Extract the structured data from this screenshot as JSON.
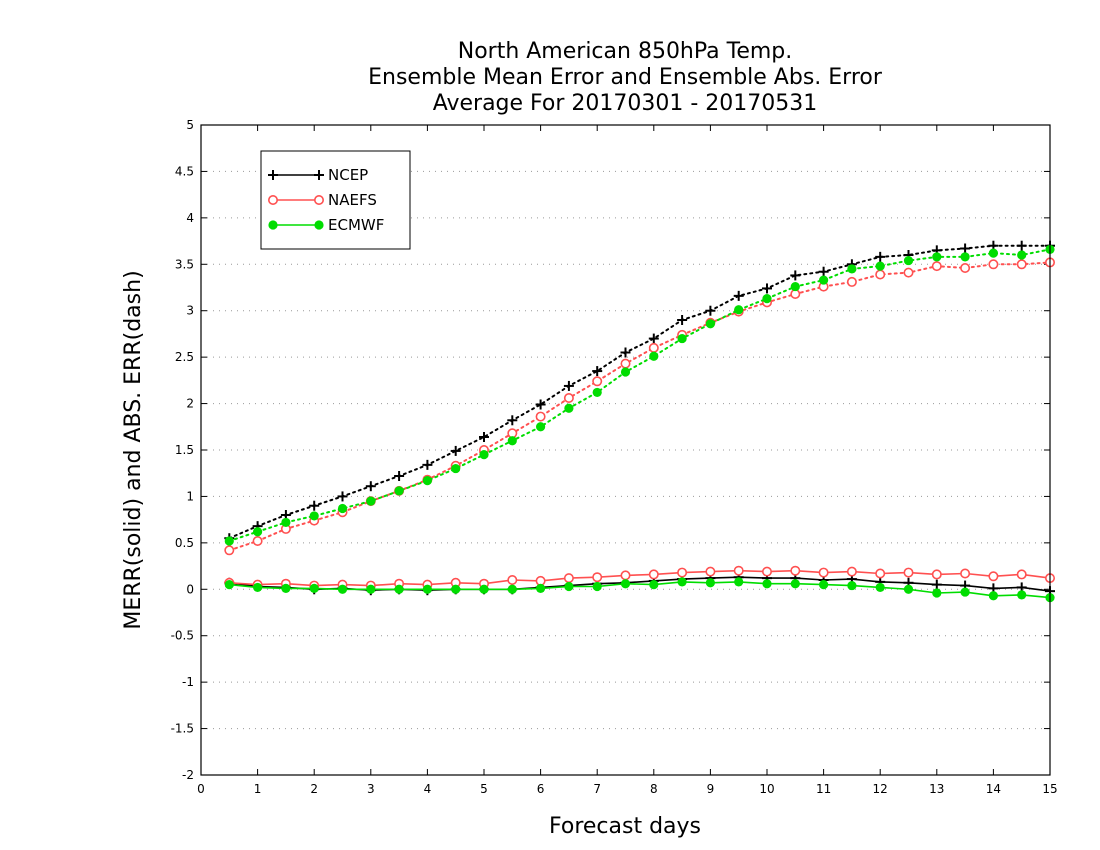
{
  "chart_data": {
    "type": "line",
    "title": [
      "North American 850hPa Temp.",
      "Ensemble Mean Error and Ensemble Abs. Error",
      "Average For 20170301 - 20170531"
    ],
    "xlabel": "Forecast days",
    "ylabel": "MERR(solid) and ABS. ERR(dash)",
    "xlim": [
      0,
      15
    ],
    "ylim": [
      -2,
      5
    ],
    "xticks": [
      "0",
      "1",
      "2",
      "3",
      "4",
      "5",
      "6",
      "7",
      "8",
      "9",
      "10",
      "11",
      "12",
      "13",
      "14",
      "15"
    ],
    "yticks": [
      "-2",
      "-1.5",
      "-1",
      "-0.5",
      "0",
      "0.5",
      "1",
      "1.5",
      "2",
      "2.5",
      "3",
      "3.5",
      "4",
      "4.5",
      "5"
    ],
    "grid": true,
    "legend_position": "top-left",
    "x": [
      0.5,
      1,
      1.5,
      2,
      2.5,
      3,
      3.5,
      4,
      4.5,
      5,
      5.5,
      6,
      6.5,
      7,
      7.5,
      8,
      8.5,
      9,
      9.5,
      10,
      10.5,
      11,
      11.5,
      12,
      12.5,
      13,
      13.5,
      14,
      14.5,
      15
    ],
    "series": [
      {
        "name": "NCEP",
        "color": "#000000",
        "marker": "plus",
        "merr": [
          0.07,
          0.03,
          0.02,
          0.0,
          0.01,
          -0.01,
          0.0,
          -0.01,
          0.0,
          0.0,
          0.0,
          0.02,
          0.04,
          0.06,
          0.07,
          0.09,
          0.11,
          0.12,
          0.13,
          0.12,
          0.12,
          0.1,
          0.11,
          0.08,
          0.07,
          0.05,
          0.04,
          0.01,
          0.02,
          -0.02
        ],
        "abs_err": [
          0.55,
          0.68,
          0.8,
          0.9,
          1.0,
          1.11,
          1.22,
          1.34,
          1.49,
          1.64,
          1.82,
          1.99,
          2.19,
          2.35,
          2.55,
          2.7,
          2.9,
          3.0,
          3.16,
          3.24,
          3.38,
          3.42,
          3.5,
          3.58,
          3.6,
          3.65,
          3.67,
          3.7,
          3.7,
          3.7
        ]
      },
      {
        "name": "NAEFS",
        "color": "#ff5050",
        "marker": "circle",
        "merr": [
          0.07,
          0.05,
          0.06,
          0.04,
          0.05,
          0.04,
          0.06,
          0.05,
          0.07,
          0.06,
          0.1,
          0.09,
          0.12,
          0.13,
          0.15,
          0.16,
          0.18,
          0.19,
          0.2,
          0.19,
          0.2,
          0.18,
          0.19,
          0.17,
          0.18,
          0.16,
          0.17,
          0.14,
          0.16,
          0.12
        ],
        "abs_err": [
          0.42,
          0.52,
          0.65,
          0.74,
          0.83,
          0.95,
          1.06,
          1.18,
          1.33,
          1.5,
          1.68,
          1.86,
          2.06,
          2.24,
          2.43,
          2.6,
          2.74,
          2.87,
          2.99,
          3.09,
          3.18,
          3.26,
          3.31,
          3.39,
          3.41,
          3.48,
          3.46,
          3.5,
          3.5,
          3.52
        ]
      },
      {
        "name": "ECMWF",
        "color": "#00dd00",
        "marker": "dot",
        "merr": [
          0.05,
          0.02,
          0.01,
          0.01,
          0.0,
          0.0,
          0.0,
          0.0,
          0.0,
          0.0,
          0.0,
          0.01,
          0.03,
          0.03,
          0.06,
          0.05,
          0.08,
          0.07,
          0.08,
          0.06,
          0.06,
          0.05,
          0.04,
          0.02,
          0.0,
          -0.04,
          -0.03,
          -0.07,
          -0.06,
          -0.09
        ],
        "abs_err": [
          0.52,
          0.62,
          0.72,
          0.79,
          0.87,
          0.95,
          1.06,
          1.17,
          1.3,
          1.45,
          1.6,
          1.75,
          1.95,
          2.12,
          2.34,
          2.51,
          2.7,
          2.86,
          3.01,
          3.13,
          3.26,
          3.33,
          3.45,
          3.48,
          3.54,
          3.58,
          3.58,
          3.62,
          3.6,
          3.66
        ]
      }
    ]
  }
}
